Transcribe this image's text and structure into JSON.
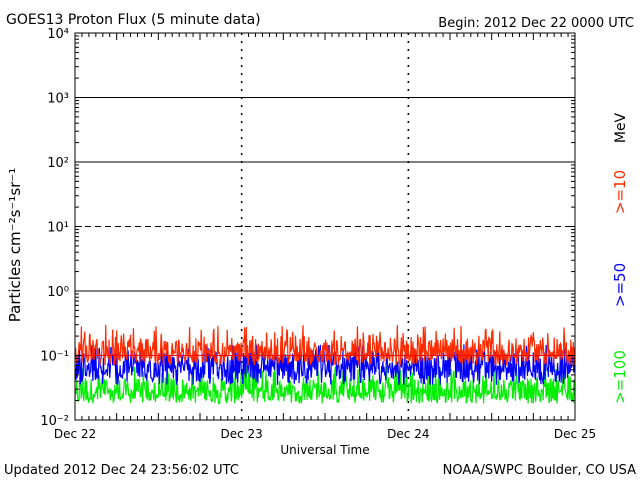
{
  "header": {
    "title": "GOES13 Proton Flux (5 minute data)",
    "begin": "Begin: 2012 Dec 22 0000 UTC"
  },
  "footer": {
    "updated": "Updated 2012 Dec 24 23:56:02 UTC",
    "credit": "NOAA/SWPC Boulder, CO USA"
  },
  "chart_data": {
    "type": "line",
    "title": "GOES13 Proton Flux (5 minute data)",
    "xlabel": "Universal Time",
    "ylabel": "Particles cm⁻²s⁻¹sr⁻¹",
    "y_scale": "log",
    "ylim": [
      0.01,
      10000
    ],
    "y_ticks": [
      "10⁻²",
      "10⁻¹",
      "10⁰",
      "10¹",
      "10²",
      "10³",
      "10⁴"
    ],
    "x_ticks": [
      "Dec 22",
      "Dec 23",
      "Dec 24",
      "Dec 25"
    ],
    "xlim_days": [
      0,
      3
    ],
    "unit_label": "MeV",
    "threshold_line": 0.1,
    "grid": "major decades solid, 10^1 dashed",
    "series": [
      {
        "name": ">=10",
        "color": "#ff2a00",
        "typical_range": [
          0.07,
          0.3
        ],
        "median": 0.12
      },
      {
        "name": ">=50",
        "color": "#0000ff",
        "typical_range": [
          0.035,
          0.15
        ],
        "median": 0.07
      },
      {
        "name": ">=100",
        "color": "#00ee00",
        "typical_range": [
          0.018,
          0.07
        ],
        "median": 0.03
      }
    ]
  }
}
